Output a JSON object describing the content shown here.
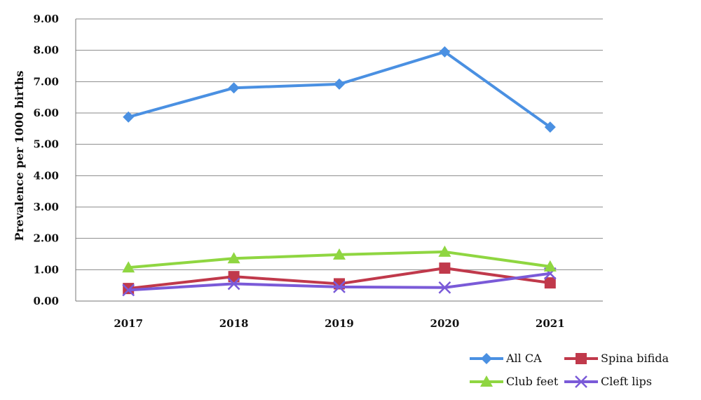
{
  "chart_data": {
    "type": "line",
    "title": "",
    "xlabel": "",
    "ylabel": "Prevalence per 1000 births",
    "categories": [
      "2017",
      "2018",
      "2019",
      "2020",
      "2021"
    ],
    "ylim": [
      0,
      9
    ],
    "yticks": [
      "0.00",
      "1.00",
      "2.00",
      "3.00",
      "4.00",
      "5.00",
      "6.00",
      "7.00",
      "8.00",
      "9.00"
    ],
    "grid": true,
    "legend_position": "bottom-right",
    "series": [
      {
        "name": "All CA",
        "color": "#4a90e2",
        "marker": "diamond",
        "values": [
          5.87,
          6.8,
          6.92,
          7.95,
          5.55
        ]
      },
      {
        "name": "Spina bifida",
        "color": "#c0394b",
        "marker": "square",
        "values": [
          0.4,
          0.78,
          0.55,
          1.05,
          0.58
        ]
      },
      {
        "name": "Club feet",
        "color": "#8fd641",
        "marker": "triangle",
        "values": [
          1.07,
          1.36,
          1.48,
          1.57,
          1.1
        ]
      },
      {
        "name": "Cleft lips",
        "color": "#7a5ad8",
        "marker": "x",
        "values": [
          0.35,
          0.55,
          0.45,
          0.43,
          0.88
        ]
      }
    ]
  }
}
